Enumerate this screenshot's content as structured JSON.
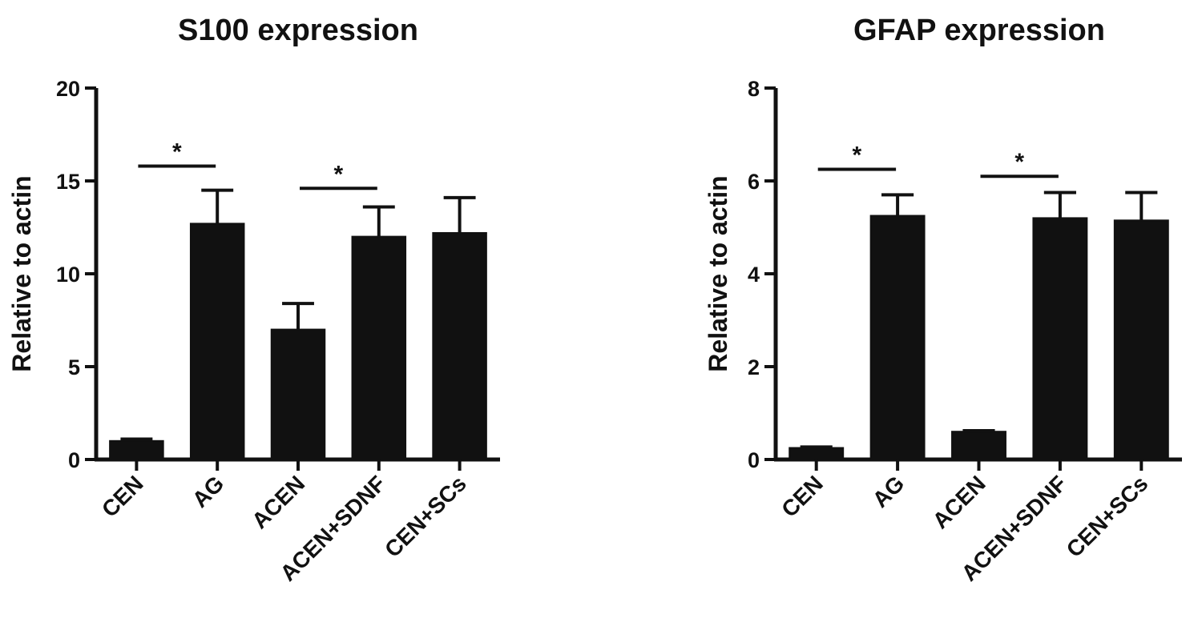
{
  "chart_data": [
    {
      "type": "bar",
      "title": "S100 expression",
      "xlabel": "",
      "ylabel": "Relative to actin",
      "categories": [
        "CEN",
        "AG",
        "ACEN",
        "ACEN+SDNF",
        "CEN+SCs"
      ],
      "values": [
        1.0,
        12.7,
        7.0,
        12.0,
        12.2
      ],
      "errors": [
        0.1,
        1.8,
        1.4,
        1.6,
        1.9
      ],
      "ylim": [
        0,
        20
      ],
      "yticks": [
        0,
        5,
        10,
        15,
        20
      ],
      "bar_color": "#111111",
      "grid": false,
      "significance": [
        {
          "from": "CEN",
          "to": "AG",
          "label": "*",
          "y": 15.8
        },
        {
          "from": "ACEN",
          "to": "ACEN+SDNF",
          "label": "*",
          "y": 14.6
        }
      ]
    },
    {
      "type": "bar",
      "title": "GFAP expression",
      "xlabel": "",
      "ylabel": "Relative to actin",
      "categories": [
        "CEN",
        "AG",
        "ACEN",
        "ACEN+SDNF",
        "CEN+SCs"
      ],
      "values": [
        0.25,
        5.25,
        0.6,
        5.2,
        5.15
      ],
      "errors": [
        0.02,
        0.45,
        0.02,
        0.55,
        0.6
      ],
      "ylim": [
        0,
        8
      ],
      "yticks": [
        0,
        2,
        4,
        6,
        8
      ],
      "bar_color": "#111111",
      "grid": false,
      "significance": [
        {
          "from": "CEN",
          "to": "AG",
          "label": "*",
          "y": 6.25
        },
        {
          "from": "ACEN",
          "to": "ACEN+SDNF",
          "label": "*",
          "y": 6.1
        }
      ]
    }
  ]
}
